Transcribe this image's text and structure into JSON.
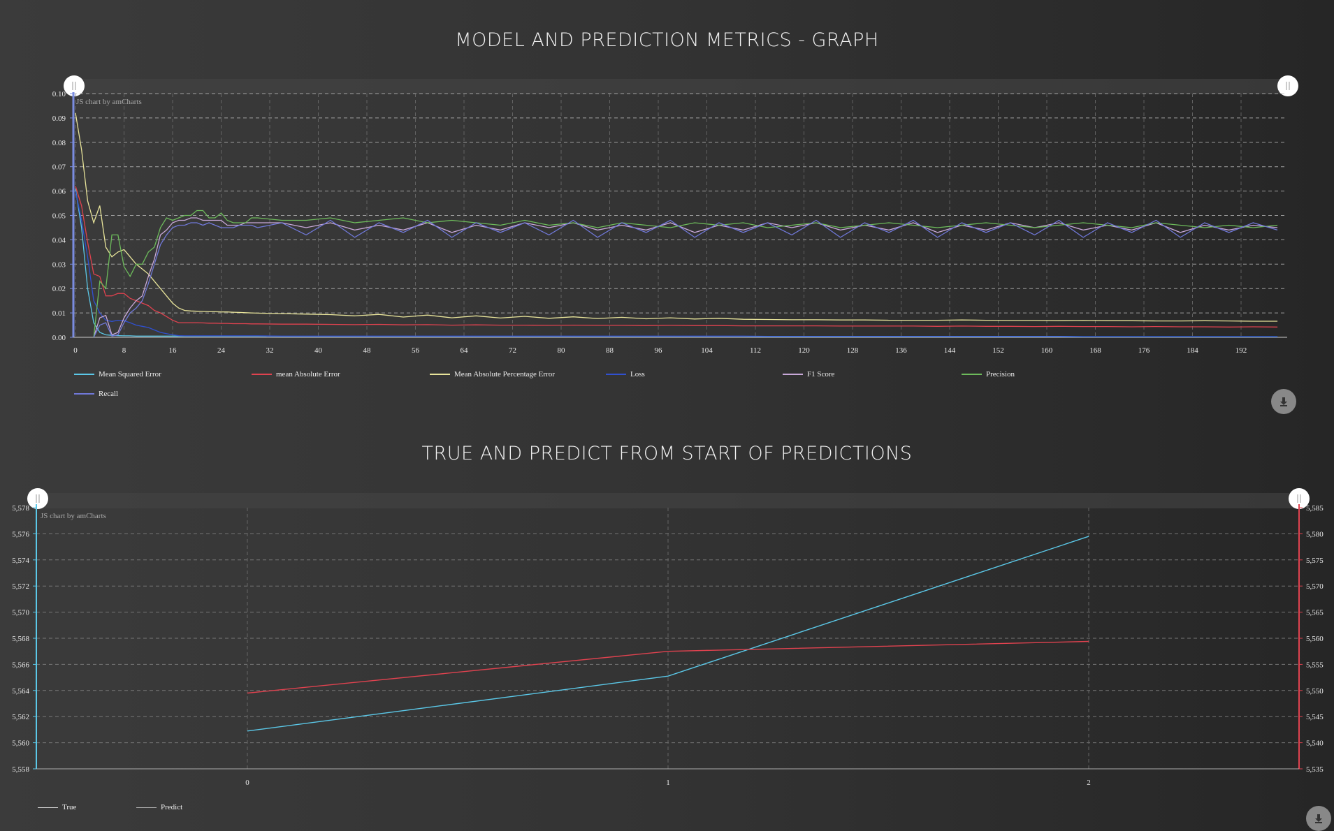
{
  "titles": {
    "metrics": "MODEL AND PREDICTION METRICS - GRAPH",
    "true_predict": "TRUE AND PREDICT FROM START OF PREDICTIONS"
  },
  "credit": "JS chart by amCharts",
  "icons": {
    "download": "download-icon",
    "scroll_grip": "grip-icon"
  },
  "chart_data": [
    {
      "type": "line",
      "title": "MODEL AND PREDICTION METRICS - GRAPH",
      "xlim": [
        0,
        199
      ],
      "ylim": [
        0,
        0.1
      ],
      "grid": true,
      "legend": "bottom",
      "x_ticks": [
        "0",
        "8",
        "16",
        "24",
        "32",
        "40",
        "48",
        "56",
        "64",
        "72",
        "80",
        "88",
        "96",
        "104",
        "112",
        "120",
        "128",
        "136",
        "144",
        "152",
        "160",
        "168",
        "176",
        "184",
        "192"
      ],
      "y_ticks": [
        "0.00",
        "0.01",
        "0.02",
        "0.03",
        "0.04",
        "0.05",
        "0.06",
        "0.07",
        "0.08",
        "0.09",
        "0.10"
      ],
      "x": [
        0,
        1,
        2,
        3,
        4,
        5,
        6,
        7,
        8,
        9,
        10,
        11,
        12,
        13,
        14,
        15,
        16,
        17,
        18,
        19,
        20,
        21,
        22,
        23,
        24,
        25,
        26,
        27,
        28,
        29,
        30,
        34,
        38,
        42,
        46,
        50,
        54,
        58,
        62,
        66,
        70,
        74,
        78,
        82,
        86,
        90,
        94,
        98,
        102,
        106,
        110,
        114,
        118,
        122,
        126,
        130,
        134,
        138,
        142,
        146,
        150,
        154,
        158,
        162,
        166,
        170,
        174,
        178,
        182,
        186,
        190,
        194,
        198
      ],
      "series": [
        {
          "name": "Mean Squared Error",
          "color": "#5bc8e8",
          "values": [
            0.061,
            0.045,
            0.02,
            0.006,
            0.002,
            0.001,
            0.0008,
            0.0007,
            0.0006,
            0.0006,
            0.0005,
            0.0005,
            0.0005,
            0.0005,
            0.0005,
            0.0005,
            0.0005,
            0.0005,
            0.0005,
            0.0005,
            0.0005,
            0.0005,
            0.0005,
            0.0005,
            0.0005,
            0.0005,
            0.0005,
            0.0005,
            0.0005,
            0.0005,
            0.0005,
            0.0004,
            0.0004,
            0.0004,
            0.0004,
            0.0004,
            0.0004,
            0.0004,
            0.0004,
            0.0004,
            0.0004,
            0.0004,
            0.0004,
            0.0004,
            0.0004,
            0.0004,
            0.0004,
            0.0004,
            0.0004,
            0.0004,
            0.0004,
            0.0003,
            0.0003,
            0.0003,
            0.0003,
            0.0003,
            0.0003,
            0.0003,
            0.0003,
            0.0003,
            0.0003,
            0.0003,
            0.0003,
            0.0003,
            0.0002,
            0.0002,
            0.0002,
            0.0002,
            0.0002,
            0.0002,
            0.0002,
            0.0002,
            0.0002
          ]
        },
        {
          "name": "mean Absolute Error",
          "color": "#e0424f",
          "values": [
            0.062,
            0.054,
            0.039,
            0.026,
            0.025,
            0.017,
            0.017,
            0.018,
            0.018,
            0.016,
            0.015,
            0.014,
            0.013,
            0.011,
            0.01,
            0.0085,
            0.007,
            0.006,
            0.006,
            0.006,
            0.006,
            0.0059,
            0.0058,
            0.0058,
            0.0057,
            0.0057,
            0.0056,
            0.0056,
            0.0056,
            0.0055,
            0.0055,
            0.0054,
            0.0054,
            0.0053,
            0.0052,
            0.0053,
            0.0051,
            0.0052,
            0.005,
            0.0051,
            0.005,
            0.005,
            0.0049,
            0.005,
            0.0049,
            0.0049,
            0.0048,
            0.0049,
            0.0048,
            0.0048,
            0.0047,
            0.0047,
            0.0047,
            0.0047,
            0.0046,
            0.0046,
            0.0046,
            0.0046,
            0.0045,
            0.0046,
            0.0045,
            0.0045,
            0.0044,
            0.0045,
            0.0044,
            0.0044,
            0.0043,
            0.0044,
            0.0043,
            0.0043,
            0.0042,
            0.0043,
            0.0042
          ]
        },
        {
          "name": "Mean Absolute Percentage Error",
          "color": "#e8e49a",
          "values": [
            0.092,
            0.077,
            0.056,
            0.047,
            0.054,
            0.037,
            0.033,
            0.035,
            0.036,
            0.033,
            0.03,
            0.028,
            0.026,
            0.023,
            0.02,
            0.017,
            0.014,
            0.012,
            0.011,
            0.0108,
            0.0107,
            0.0106,
            0.0105,
            0.0105,
            0.0104,
            0.0104,
            0.0103,
            0.0102,
            0.0101,
            0.01,
            0.0099,
            0.0097,
            0.0095,
            0.0093,
            0.0088,
            0.0094,
            0.0083,
            0.0091,
            0.008,
            0.0088,
            0.0079,
            0.0086,
            0.0078,
            0.0084,
            0.0077,
            0.0082,
            0.0076,
            0.008,
            0.0075,
            0.0078,
            0.0074,
            0.0073,
            0.0072,
            0.0072,
            0.0071,
            0.0071,
            0.007,
            0.007,
            0.007,
            0.0071,
            0.007,
            0.0069,
            0.0069,
            0.0068,
            0.0069,
            0.0068,
            0.0068,
            0.0067,
            0.0067,
            0.0068,
            0.0067,
            0.0066,
            0.0066
          ]
        },
        {
          "name": "Loss",
          "color": "#3050d0",
          "values": [
            0.06,
            0.048,
            0.033,
            0.015,
            0.01,
            0.007,
            0.0065,
            0.007,
            0.0068,
            0.006,
            0.005,
            0.0045,
            0.004,
            0.003,
            0.002,
            0.0015,
            0.001,
            0.0007,
            0.0006,
            0.0006,
            0.0006,
            0.0006,
            0.0006,
            0.0006,
            0.0006,
            0.0006,
            0.0006,
            0.0006,
            0.0006,
            0.0006,
            0.0006,
            0.0005,
            0.0005,
            0.0005,
            0.0005,
            0.0005,
            0.0005,
            0.0005,
            0.0005,
            0.0005,
            0.0005,
            0.0005,
            0.0005,
            0.0005,
            0.0005,
            0.0005,
            0.0005,
            0.0005,
            0.0005,
            0.0005,
            0.0005,
            0.0004,
            0.0004,
            0.0004,
            0.0004,
            0.0004,
            0.0004,
            0.0004,
            0.0004,
            0.0004,
            0.0004,
            0.0004,
            0.0004,
            0.0004,
            0.0003,
            0.0003,
            0.0003,
            0.0003,
            0.0003,
            0.0003,
            0.0003,
            0.0003,
            0.0003
          ]
        },
        {
          "name": "F1 Score",
          "color": "#c8a8d8",
          "values": [
            null,
            null,
            null,
            0,
            0.008,
            0.009,
            0.001,
            0.002,
            0.008,
            0.012,
            0.015,
            0.017,
            0.025,
            0.032,
            0.042,
            0.044,
            0.047,
            0.048,
            0.048,
            0.049,
            0.049,
            0.048,
            0.048,
            0.048,
            0.048,
            0.046,
            0.046,
            0.046,
            0.047,
            0.047,
            0.047,
            0.047,
            0.045,
            0.047,
            0.044,
            0.046,
            0.044,
            0.047,
            0.043,
            0.046,
            0.044,
            0.047,
            0.045,
            0.047,
            0.044,
            0.046,
            0.044,
            0.047,
            0.043,
            0.046,
            0.044,
            0.047,
            0.045,
            0.047,
            0.044,
            0.046,
            0.044,
            0.047,
            0.043,
            0.046,
            0.044,
            0.047,
            0.045,
            0.047,
            0.044,
            0.046,
            0.044,
            0.047,
            0.043,
            0.046,
            0.044,
            0.046,
            0.045
          ]
        },
        {
          "name": "Precision",
          "color": "#6dbb5b",
          "values": [
            null,
            null,
            null,
            0,
            0.023,
            0.02,
            0.042,
            0.042,
            0.029,
            0.025,
            0.03,
            0.03,
            0.035,
            0.037,
            0.045,
            0.049,
            0.048,
            0.049,
            0.05,
            0.05,
            0.052,
            0.052,
            0.049,
            0.049,
            0.051,
            0.048,
            0.047,
            0.047,
            0.047,
            0.049,
            0.049,
            0.048,
            0.048,
            0.049,
            0.047,
            0.048,
            0.049,
            0.047,
            0.048,
            0.047,
            0.046,
            0.048,
            0.046,
            0.047,
            0.045,
            0.047,
            0.046,
            0.045,
            0.047,
            0.046,
            0.047,
            0.045,
            0.046,
            0.047,
            0.045,
            0.046,
            0.047,
            0.046,
            0.045,
            0.046,
            0.047,
            0.046,
            0.045,
            0.046,
            0.047,
            0.046,
            0.045,
            0.047,
            0.046,
            0.045,
            0.046,
            0.045,
            0.046
          ]
        },
        {
          "name": "Recall",
          "color": "#7078d8",
          "values": [
            null,
            null,
            null,
            0,
            0.005,
            0.006,
            0.0005,
            0.001,
            0.006,
            0.01,
            0.012,
            0.015,
            0.022,
            0.03,
            0.038,
            0.042,
            0.045,
            0.046,
            0.046,
            0.047,
            0.047,
            0.046,
            0.047,
            0.046,
            0.045,
            0.045,
            0.045,
            0.046,
            0.046,
            0.046,
            0.045,
            0.047,
            0.042,
            0.048,
            0.041,
            0.047,
            0.043,
            0.048,
            0.041,
            0.047,
            0.043,
            0.047,
            0.042,
            0.048,
            0.041,
            0.047,
            0.043,
            0.048,
            0.041,
            0.047,
            0.043,
            0.047,
            0.042,
            0.048,
            0.041,
            0.047,
            0.043,
            0.048,
            0.041,
            0.047,
            0.043,
            0.047,
            0.042,
            0.048,
            0.041,
            0.047,
            0.043,
            0.048,
            0.041,
            0.047,
            0.043,
            0.047,
            0.044
          ]
        }
      ]
    },
    {
      "type": "line",
      "title": "TRUE AND PREDICT FROM START OF PREDICTIONS",
      "categories": [
        "0",
        "1",
        "2"
      ],
      "grid": true,
      "legend": "bottom-left",
      "y_left": {
        "range": [
          5558,
          5578
        ],
        "ticks": [
          "5,558",
          "5,560",
          "5,562",
          "5,564",
          "5,566",
          "5,568",
          "5,570",
          "5,572",
          "5,574",
          "5,576",
          "5,578"
        ],
        "color": "#5bc8e8"
      },
      "y_right": {
        "range": [
          5535,
          5585
        ],
        "ticks": [
          "5,535",
          "5,540",
          "5,545",
          "5,550",
          "5,555",
          "5,560",
          "5,565",
          "5,570",
          "5,575",
          "5,580",
          "5,585"
        ],
        "color": "#e0424f"
      },
      "series": [
        {
          "name": "True",
          "color": "#5bc8e8",
          "axis": "left",
          "values": [
            5560.9,
            5565.1,
            5575.8
          ]
        },
        {
          "name": "Predict",
          "color": "#e0424f",
          "axis": "right",
          "values": [
            5549.5,
            5557.5,
            5559.4
          ]
        }
      ]
    }
  ]
}
